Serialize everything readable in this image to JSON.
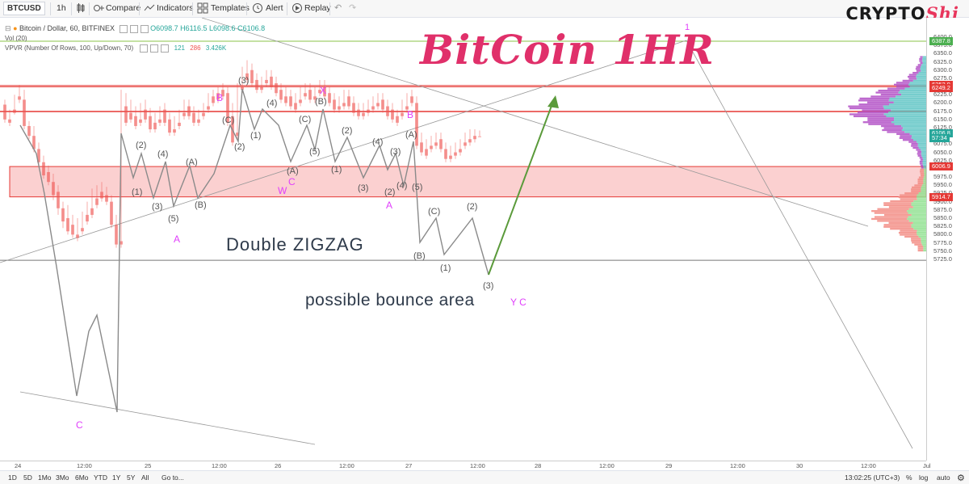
{
  "toolbar": {
    "symbol": "BTCUSD",
    "interval": "1h",
    "compare": "Compare",
    "indicators": "Indicators",
    "templates": "Templates",
    "alert": "Alert",
    "replay": "Replay"
  },
  "logo": {
    "main": "CRYPTO",
    "accent": "Shi"
  },
  "legend": {
    "title": "Bitcoin / Dollar, 60, BITFINEX",
    "o": "O6098.7",
    "h": "H6116.5",
    "l": "L6098.6",
    "c": "C6106.8",
    "vol": "Vol (20)",
    "vpvr": "VPVR (Number Of Rows, 100, Up/Down, 70)",
    "vpvr_up": "121",
    "vpvr_down": "286",
    "vpvr_total": "3.426K"
  },
  "annotations": {
    "title": "BitCoin 1HR",
    "double_zigzag": "Double ZIGZAG",
    "bounce": "possible bounce area",
    "wave_1_top": "1",
    "magenta": [
      {
        "id": "B1",
        "text": "B"
      },
      {
        "id": "X",
        "text": "X"
      },
      {
        "id": "B2",
        "text": "B"
      },
      {
        "id": "A1",
        "text": "A"
      },
      {
        "id": "W",
        "text": "W"
      },
      {
        "id": "C1",
        "text": "C"
      },
      {
        "id": "A2",
        "text": "A"
      },
      {
        "id": "YC",
        "text": "Y C"
      },
      {
        "id": "C2",
        "text": "C"
      }
    ],
    "waves": [
      {
        "id": "w1",
        "text": "(1)"
      },
      {
        "id": "w2",
        "text": "(2)"
      },
      {
        "id": "w3",
        "text": "(3)"
      },
      {
        "id": "w4",
        "text": "(4)"
      },
      {
        "id": "w5",
        "text": "(5)"
      },
      {
        "id": "wA",
        "text": "(A)"
      },
      {
        "id": "wB",
        "text": "(B)"
      },
      {
        "id": "wC",
        "text": "(C)"
      },
      {
        "id": "w2b",
        "text": "(2)"
      },
      {
        "id": "w3b",
        "text": "(3)"
      },
      {
        "id": "w1b",
        "text": "(1)"
      },
      {
        "id": "w4b",
        "text": "(4)"
      },
      {
        "id": "wAb",
        "text": "(A)"
      },
      {
        "id": "wCb",
        "text": "(C)"
      },
      {
        "id": "w5b",
        "text": "(5)"
      },
      {
        "id": "wBb",
        "text": "(B)"
      },
      {
        "id": "w1c",
        "text": "(1)"
      },
      {
        "id": "w2c",
        "text": "(2)"
      },
      {
        "id": "w3c",
        "text": "(3)"
      },
      {
        "id": "w4c",
        "text": "(4)"
      },
      {
        "id": "w2d",
        "text": "(2)"
      },
      {
        "id": "w3d",
        "text": "(3)"
      },
      {
        "id": "w4d",
        "text": "(4)"
      },
      {
        "id": "wAc",
        "text": "(A)"
      },
      {
        "id": "w5c",
        "text": "(5)"
      },
      {
        "id": "wBc",
        "text": "(B)"
      },
      {
        "id": "wCc",
        "text": "(C)"
      },
      {
        "id": "w1d",
        "text": "(1)"
      },
      {
        "id": "w2e",
        "text": "(2)"
      },
      {
        "id": "w3e",
        "text": "(3)"
      },
      {
        "id": "w4e",
        "text": "(4)"
      },
      {
        "id": "w5d",
        "text": "(5)"
      }
    ]
  },
  "price_axis": {
    "ticks": [
      "6400.0",
      "6375.0",
      "6350.0",
      "6325.0",
      "6300.0",
      "6275.0",
      "6250.0",
      "6225.0",
      "6200.0",
      "6175.0",
      "6150.0",
      "6125.0",
      "6100.0",
      "6075.0",
      "6050.0",
      "6025.0",
      "6000.0",
      "5975.0",
      "5950.0",
      "5925.0",
      "5900.0",
      "5875.0",
      "5850.0",
      "5825.0",
      "5800.0",
      "5775.0",
      "5750.0",
      "5725.0"
    ],
    "badges": [
      {
        "text": "6387.8",
        "color": "#4caf50"
      },
      {
        "text": "6252.9",
        "color": "#e53935"
      },
      {
        "text": "6249.2",
        "color": "#e53935"
      },
      {
        "text": "6106.8",
        "color": "#26a69a"
      },
      {
        "text": "57:34",
        "color": "#26a69a"
      },
      {
        "text": "6006.9",
        "color": "#e53935"
      },
      {
        "text": "5914.7",
        "color": "#e53935"
      }
    ]
  },
  "time_axis": {
    "ticks": [
      "24",
      "12:00",
      "25",
      "12:00",
      "26",
      "12:00",
      "27",
      "12:00",
      "28",
      "12:00",
      "29",
      "12:00",
      "30",
      "12:00",
      "Jul"
    ]
  },
  "bottom_bar": {
    "ranges": [
      "1D",
      "5D",
      "1Mo",
      "3Mo",
      "6Mo",
      "YTD",
      "1Y",
      "5Y",
      "All"
    ],
    "goto": "Go to...",
    "clock": "13:02:25 (UTC+3)",
    "pct": "%",
    "log": "log",
    "auto": "auto"
  },
  "colors": {
    "up": "#26a69a",
    "down": "#ef5350",
    "vp_up": "#4dd0c8",
    "vp_down": "#9c27b0",
    "bounce_zone": "#fbd0d0",
    "resistance": "#e53935",
    "arrow": "#5a9a3a",
    "accent": "#e0306a"
  }
}
